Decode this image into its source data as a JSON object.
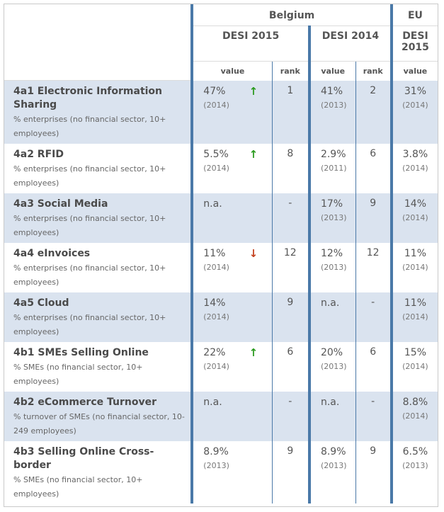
{
  "header": {
    "country": "Belgium",
    "eu": "EU",
    "desi2015": "DESI 2015",
    "desi2014": "DESI 2014",
    "eu_desi_l1": "DESI",
    "eu_desi_l2": "2015",
    "value": "value",
    "rank": "rank",
    "eu_value": "value"
  },
  "colors": {
    "divider": "#4a79a8",
    "shaded_row": "#dae3ef",
    "arrow_up": "#2a9a1e",
    "arrow_down": "#c4411e"
  },
  "rows": [
    {
      "title": "4a1 Electronic Information Sharing",
      "desc": "% enterprises (no financial sector, 10+ employees)",
      "v15": "47%",
      "y15": "(2014)",
      "arrow": "↑",
      "rank15": "1",
      "v14": "41%",
      "y14": "(2013)",
      "rank14": "2",
      "eu": "31%",
      "euy": "(2014)"
    },
    {
      "title": "4a2 RFID",
      "desc": "% enterprises (no financial sector, 10+ employees)",
      "v15": "5.5%",
      "y15": "(2014)",
      "arrow": "↑",
      "rank15": "8",
      "v14": "2.9%",
      "y14": "(2011)",
      "rank14": "6",
      "eu": "3.8%",
      "euy": "(2014)"
    },
    {
      "title": "4a3 Social Media",
      "desc": "% enterprises (no financial sector, 10+ employees)",
      "v15": "n.a.",
      "y15": "",
      "arrow": "",
      "rank15": "-",
      "v14": "17%",
      "y14": "(2013)",
      "rank14": "9",
      "eu": "14%",
      "euy": "(2014)"
    },
    {
      "title": "4a4 eInvoices",
      "desc": "% enterprises (no financial sector, 10+ employees)",
      "v15": "11%",
      "y15": "(2014)",
      "arrow": "↓",
      "rank15": "12",
      "v14": "12%",
      "y14": "(2013)",
      "rank14": "12",
      "eu": "11%",
      "euy": "(2014)"
    },
    {
      "title": "4a5 Cloud",
      "desc": "% enterprises (no financial sector, 10+ employees)",
      "v15": "14%",
      "y15": "(2014)",
      "arrow": "",
      "rank15": "9",
      "v14": "n.a.",
      "y14": "",
      "rank14": "-",
      "eu": "11%",
      "euy": "(2014)"
    },
    {
      "title": "4b1 SMEs Selling Online",
      "desc": "% SMEs (no financial sector, 10+ employees)",
      "v15": "22%",
      "y15": "(2014)",
      "arrow": "↑",
      "rank15": "6",
      "v14": "20%",
      "y14": "(2013)",
      "rank14": "6",
      "eu": "15%",
      "euy": "(2014)"
    },
    {
      "title": "4b2 eCommerce Turnover",
      "desc": "% turnover of SMEs (no financial sector, 10-249 employees)",
      "v15": "n.a.",
      "y15": "",
      "arrow": "",
      "rank15": "-",
      "v14": "n.a.",
      "y14": "",
      "rank14": "-",
      "eu": "8.8%",
      "euy": "(2014)"
    },
    {
      "title": "4b3 Selling Online Cross-border",
      "desc": "% SMEs (no financial sector, 10+ employees)",
      "v15": "8.9%",
      "y15": "(2013)",
      "arrow": "",
      "rank15": "9",
      "v14": "8.9%",
      "y14": "(2013)",
      "rank14": "9",
      "eu": "6.5%",
      "euy": "(2013)"
    }
  ]
}
